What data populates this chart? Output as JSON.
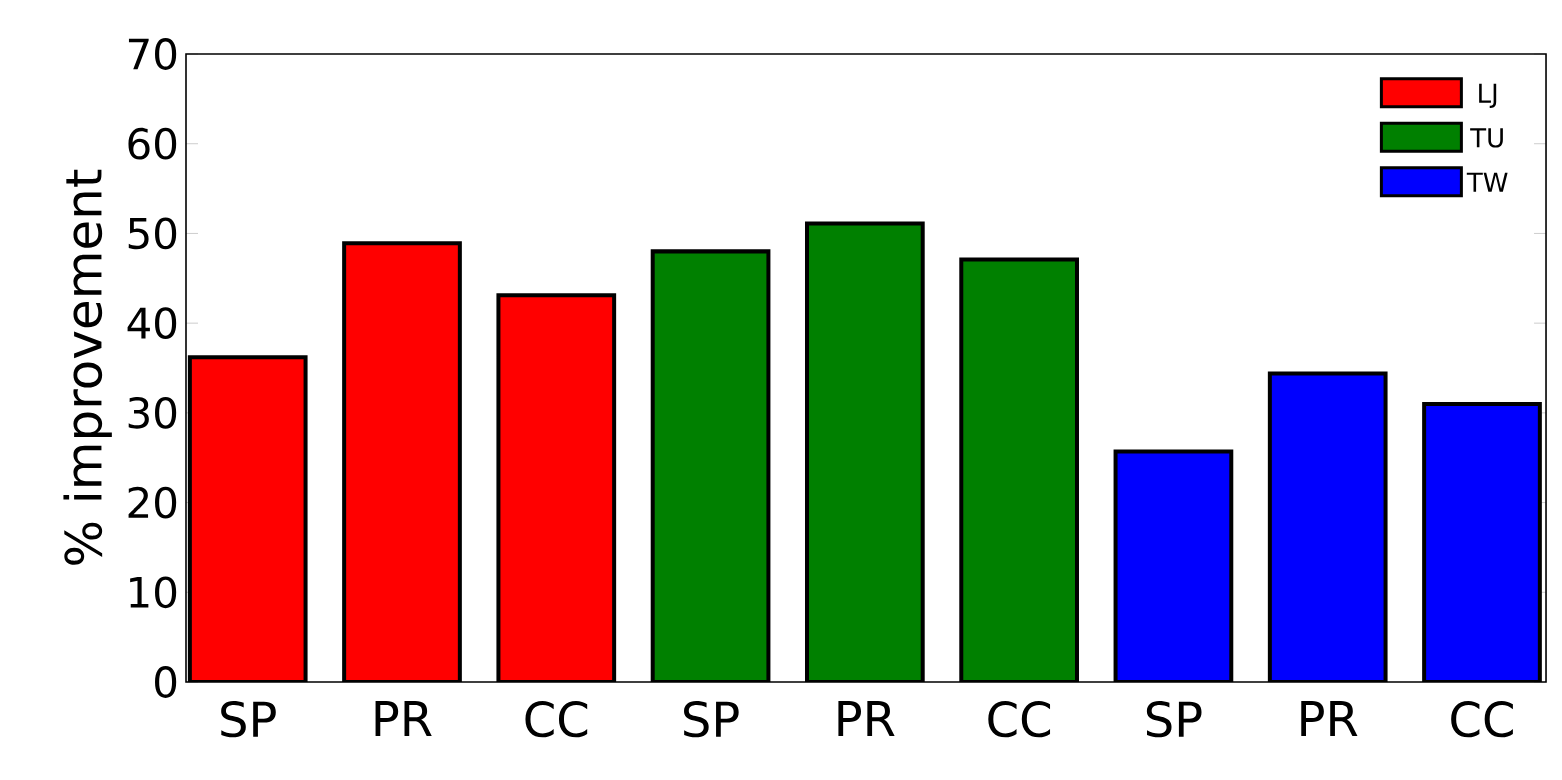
{
  "chart_data": {
    "type": "bar",
    "ylabel": "% improvement",
    "categories": [
      "SP",
      "PR",
      "CC",
      "SP",
      "PR",
      "CC",
      "SP",
      "PR",
      "CC"
    ],
    "series": [
      {
        "name": "LJ",
        "color": "#ff0000",
        "values": [
          36.2,
          48.9,
          43.1,
          null,
          null,
          null,
          null,
          null,
          null
        ]
      },
      {
        "name": "TU",
        "color": "#008000",
        "values": [
          null,
          null,
          null,
          48.0,
          51.1,
          47.1,
          null,
          null,
          null
        ]
      },
      {
        "name": "TW",
        "color": "#0000ff",
        "values": [
          null,
          null,
          null,
          null,
          null,
          null,
          25.7,
          34.4,
          31.0
        ]
      }
    ],
    "ylim": [
      0,
      70
    ],
    "yticks": [
      0,
      10,
      20,
      30,
      40,
      50,
      60,
      70
    ],
    "legend": "top right"
  }
}
